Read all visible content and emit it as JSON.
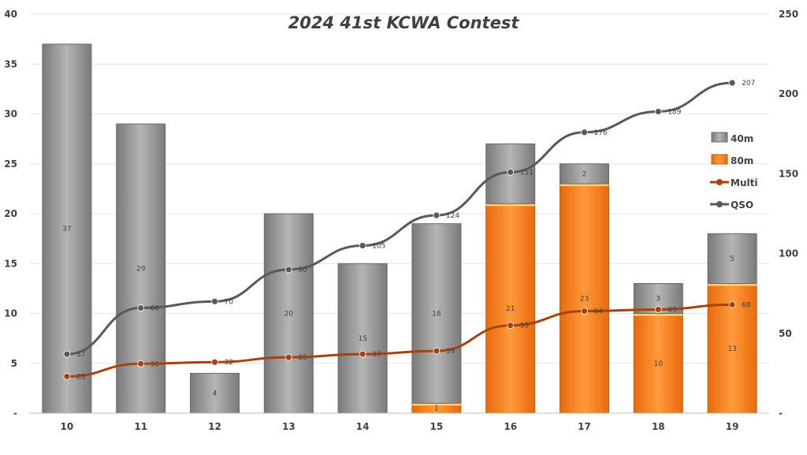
{
  "chart_data": {
    "type": "bar",
    "title": "2024 41st KCWA Contest",
    "categories": [
      "10",
      "11",
      "12",
      "13",
      "14",
      "15",
      "16",
      "17",
      "18",
      "19"
    ],
    "series": [
      {
        "name": "40m",
        "kind": "stacked-bar",
        "axis": "left",
        "color": "#8c8c8c",
        "values": [
          37,
          29,
          4,
          20,
          15,
          18,
          6,
          2,
          3,
          5
        ],
        "labels": [
          "37",
          "29",
          "4",
          "20",
          "15",
          "18",
          "",
          "2",
          "3",
          "5"
        ]
      },
      {
        "name": "80m",
        "kind": "stacked-bar",
        "axis": "left",
        "color": "#f0750f",
        "values": [
          0,
          0,
          0,
          0,
          0,
          1,
          21,
          23,
          10,
          13
        ],
        "labels": [
          "",
          "",
          "",
          "",
          "",
          "1",
          "21",
          "23",
          "10",
          "13"
        ]
      },
      {
        "name": "Multi",
        "kind": "line",
        "axis": "right",
        "color": "#a8420a",
        "values": [
          23,
          31,
          32,
          35,
          37,
          39,
          55,
          64,
          65,
          68
        ]
      },
      {
        "name": "QSO",
        "kind": "line",
        "axis": "right",
        "color": "#595959",
        "values": [
          37,
          66,
          70,
          90,
          105,
          124,
          151,
          176,
          189,
          207
        ]
      }
    ],
    "y_left": {
      "min": 0,
      "max": 40,
      "step": 5,
      "tick_labels": [
        "-",
        "5",
        "10",
        "15",
        "20",
        "25",
        "30",
        "35",
        "40"
      ]
    },
    "y_right": {
      "min": 0,
      "max": 250,
      "step": 50,
      "tick_labels": [
        "-",
        "50",
        "100",
        "150",
        "200",
        "250"
      ]
    },
    "grid": true,
    "legend_position": "right"
  }
}
